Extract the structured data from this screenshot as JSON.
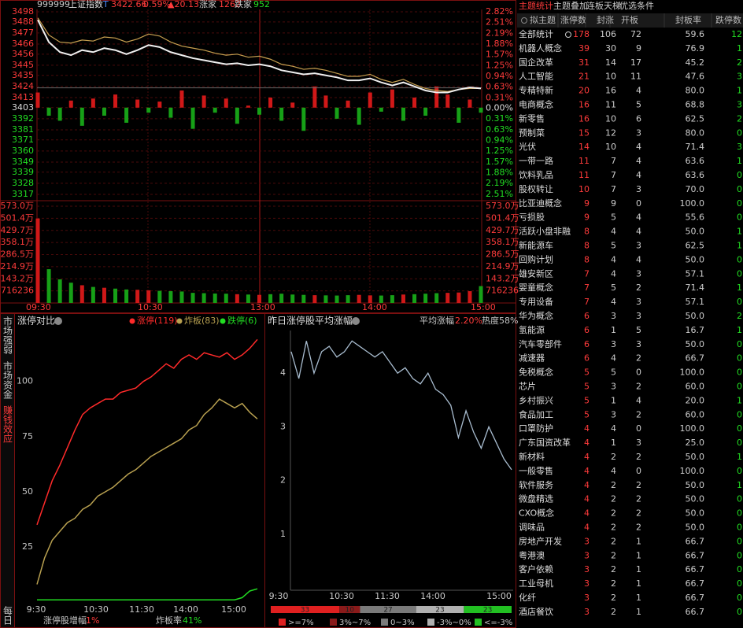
{
  "header": {
    "code": "999999",
    "name": "上证指数",
    "flag": "T",
    "price": "3422.66",
    "pct": "0.59%",
    "change": "▲20.13",
    "up_label": "涨家",
    "up": "1262",
    "down_label": "跌家",
    "down": "952"
  },
  "index_chart": {
    "ylim": [
      3317,
      3498
    ],
    "price_ticks": [
      3498,
      3488,
      3477,
      3466,
      3456,
      3445,
      3435,
      3424,
      3413,
      3403,
      3392,
      3381,
      3371,
      3360,
      3349,
      3339,
      3328,
      3317
    ],
    "pct_ticks": [
      {
        "value": 2.82,
        "label": "2.82%"
      },
      {
        "value": 2.51,
        "label": "2.51%"
      },
      {
        "value": 2.19,
        "label": "2.19%"
      },
      {
        "value": 1.88,
        "label": "1.88%"
      },
      {
        "value": 1.57,
        "label": "1.57%"
      },
      {
        "value": 1.25,
        "label": "1.25%"
      },
      {
        "value": 0.94,
        "label": "0.94%"
      },
      {
        "value": 0.63,
        "label": "0.63%"
      },
      {
        "value": 0.31,
        "label": "0.31%"
      },
      {
        "value": 0,
        "label": "0.00%"
      },
      {
        "value": -0.31,
        "label": "0.31%"
      },
      {
        "value": -0.63,
        "label": "0.63%"
      },
      {
        "value": -0.94,
        "label": "0.94%"
      },
      {
        "value": -1.25,
        "label": "1.25%"
      },
      {
        "value": -1.57,
        "label": "1.57%"
      },
      {
        "value": -1.88,
        "label": "1.88%"
      },
      {
        "value": -2.19,
        "label": "2.19%"
      },
      {
        "value": -2.51,
        "label": "2.51%"
      }
    ],
    "pct_lim": [
      -2.51,
      2.82
    ],
    "volume_ylim": [
      0,
      573
    ],
    "volume_ticks": [
      {
        "value": 573.0,
        "label": "573.0万"
      },
      {
        "value": 501.4,
        "label": "501.4万"
      },
      {
        "value": 429.7,
        "label": "429.7万"
      },
      {
        "value": 358.1,
        "label": "358.1万"
      },
      {
        "value": 286.5,
        "label": "286.5万"
      },
      {
        "value": 214.9,
        "label": "214.9万"
      },
      {
        "value": 143.2,
        "label": "143.2万"
      },
      {
        "value": 71.6236,
        "label": "716236"
      }
    ],
    "time_ticks": [
      "09:30",
      "10:30",
      "13:00",
      "14:00",
      "15:00"
    ],
    "index": [
      3490,
      3468,
      3458,
      3455,
      3460,
      3458,
      3462,
      3460,
      3456,
      3460,
      3465,
      3463,
      3458,
      3455,
      3452,
      3450,
      3448,
      3446,
      3447,
      3445,
      3446,
      3444,
      3440,
      3438,
      3436,
      3437,
      3435,
      3433,
      3430,
      3430,
      3432,
      3428,
      3425,
      3428,
      3424,
      3420,
      3418,
      3418,
      3421,
      3423,
      3422
    ],
    "leader": [
      3492,
      3475,
      3468,
      3467,
      3470,
      3469,
      3473,
      3472,
      3468,
      3471,
      3476,
      3474,
      3468,
      3464,
      3462,
      3460,
      3457,
      3455,
      3456,
      3453,
      3454,
      3451,
      3446,
      3444,
      3441,
      3442,
      3440,
      3437,
      3434,
      3434,
      3436,
      3431,
      3428,
      3431,
      3426,
      3422,
      3420,
      3419,
      3421,
      3422,
      3422
    ],
    "strength": [
      3418,
      3395,
      3390,
      3410,
      3385,
      3412,
      3395,
      3416,
      3388,
      3411,
      3398,
      3409,
      3393,
      3420,
      3382,
      3415,
      3398,
      3412,
      3387,
      3405,
      3396,
      3413,
      3390,
      3408,
      3380,
      3424,
      3415,
      3392,
      3410,
      3386,
      3418,
      3399,
      3421,
      3390,
      3413,
      3395,
      3424,
      3416,
      3388,
      3411,
      3398
    ],
    "volume": [
      500,
      200,
      140,
      120,
      105,
      95,
      90,
      85,
      80,
      78,
      75,
      72,
      70,
      68,
      60,
      58,
      56,
      55,
      52,
      50,
      48,
      52,
      55,
      50,
      48,
      46,
      45,
      44,
      46,
      48,
      45,
      44,
      46,
      50,
      52,
      55,
      58,
      60,
      62,
      70,
      100
    ]
  },
  "limit_panel": {
    "side_tabs": [
      "市场强弱",
      "市场资金",
      "赚钱效应",
      "每日"
    ],
    "title": "涨停对比",
    "ylim": [
      0,
      122
    ],
    "yticks": [
      25,
      50,
      75,
      100
    ],
    "time_ticks": [
      "9:30",
      "10:30",
      "11:30",
      "14:00",
      "15:00"
    ],
    "series": [
      {
        "name": "涨停(119)",
        "color": "#ff2a2a",
        "values": [
          35,
          45,
          55,
          62,
          70,
          78,
          85,
          88,
          90,
          92,
          92,
          95,
          96,
          97,
          100,
          102,
          105,
          108,
          106,
          110,
          112,
          110,
          113,
          112,
          111,
          113,
          110,
          112,
          115,
          119
        ]
      },
      {
        "name": "炸板(83)",
        "color": "#b8a050",
        "values": [
          8,
          20,
          28,
          32,
          36,
          38,
          42,
          44,
          48,
          50,
          52,
          55,
          58,
          60,
          63,
          66,
          68,
          70,
          72,
          74,
          78,
          80,
          85,
          88,
          92,
          90,
          88,
          90,
          86,
          83
        ]
      },
      {
        "name": "跌停(6)",
        "color": "#22dd22",
        "values": [
          1,
          1,
          1,
          1,
          1,
          1,
          1,
          1,
          1,
          1,
          1,
          1,
          1,
          1,
          1,
          1,
          1,
          1,
          1,
          1,
          1,
          1,
          1,
          1,
          1,
          1,
          1,
          2,
          5,
          6
        ]
      }
    ],
    "footer": [
      {
        "label": "涨停股增幅",
        "value": "1%"
      },
      {
        "label": "炸板率",
        "value": "41%"
      }
    ]
  },
  "yesterday_panel": {
    "title": "昨日涨停股平均涨幅",
    "avg_label": "平均涨幅",
    "avg_value": "2.20%",
    "heat": "热度58%",
    "ylim": [
      0,
      4.75
    ],
    "yticks": [
      1,
      2,
      3,
      4
    ],
    "time_ticks": [
      "9:30",
      "10:30",
      "11:30",
      "14:00",
      "15:00"
    ],
    "values": [
      4.4,
      3.9,
      4.6,
      4.0,
      4.4,
      4.5,
      4.3,
      4.4,
      4.6,
      4.5,
      4.4,
      4.3,
      4.4,
      4.2,
      4.0,
      4.1,
      3.9,
      3.8,
      4.0,
      3.7,
      3.6,
      3.4,
      2.8,
      3.3,
      2.9,
      2.6,
      3.0,
      2.7,
      2.4,
      2.2
    ],
    "distribution": [
      {
        "label": ">=7%",
        "value": 33,
        "color": "#e02020"
      },
      {
        "label": "3%~7%",
        "value": 10,
        "color": "#8a1a1a"
      },
      {
        "label": "0~3%",
        "value": 27,
        "color": "#7a7a7a"
      },
      {
        "label": "-3%~0%",
        "value": 23,
        "color": "#b0b0b0"
      },
      {
        "label": "<=-3%",
        "value": 23,
        "color": "#22c022"
      }
    ]
  },
  "table": {
    "tabs": [
      "主题统计",
      "主题叠加",
      "连板天梯",
      "优选条件"
    ],
    "columns": [
      "拟主题",
      "涨停数",
      "封涨",
      "开板",
      "封板率",
      "跌停数"
    ],
    "rows": [
      [
        "全部统计",
        "178",
        "106",
        "72",
        "59.6",
        "12"
      ],
      [
        "机器人概念",
        "39",
        "30",
        "9",
        "76.9",
        "1"
      ],
      [
        "国企改革",
        "31",
        "14",
        "17",
        "45.2",
        "2"
      ],
      [
        "人工智能",
        "21",
        "10",
        "11",
        "47.6",
        "3"
      ],
      [
        "专精特新",
        "20",
        "16",
        "4",
        "80.0",
        "1"
      ],
      [
        "电商概念",
        "16",
        "11",
        "5",
        "68.8",
        "3"
      ],
      [
        "新零售",
        "16",
        "10",
        "6",
        "62.5",
        "2"
      ],
      [
        "预制菜",
        "15",
        "12",
        "3",
        "80.0",
        "0"
      ],
      [
        "光伏",
        "14",
        "10",
        "4",
        "71.4",
        "3"
      ],
      [
        "一带一路",
        "11",
        "7",
        "4",
        "63.6",
        "1"
      ],
      [
        "饮料乳品",
        "11",
        "7",
        "4",
        "63.6",
        "0"
      ],
      [
        "股权转让",
        "10",
        "7",
        "3",
        "70.0",
        "0"
      ],
      [
        "比亚迪概念",
        "9",
        "9",
        "0",
        "100.0",
        "0"
      ],
      [
        "亏损股",
        "9",
        "5",
        "4",
        "55.6",
        "0"
      ],
      [
        "活跃小盘非融",
        "8",
        "4",
        "4",
        "50.0",
        "1"
      ],
      [
        "新能源车",
        "8",
        "5",
        "3",
        "62.5",
        "1"
      ],
      [
        "回购计划",
        "8",
        "4",
        "4",
        "50.0",
        "0"
      ],
      [
        "雄安新区",
        "7",
        "4",
        "3",
        "57.1",
        "0"
      ],
      [
        "婴童概念",
        "7",
        "5",
        "2",
        "71.4",
        "1"
      ],
      [
        "专用设备",
        "7",
        "4",
        "3",
        "57.1",
        "0"
      ],
      [
        "华为概念",
        "6",
        "3",
        "3",
        "50.0",
        "2"
      ],
      [
        "氢能源",
        "6",
        "1",
        "5",
        "16.7",
        "1"
      ],
      [
        "汽车零部件",
        "6",
        "3",
        "3",
        "50.0",
        "0"
      ],
      [
        "减速器",
        "6",
        "4",
        "2",
        "66.7",
        "0"
      ],
      [
        "免税概念",
        "5",
        "5",
        "0",
        "100.0",
        "0"
      ],
      [
        "芯片",
        "5",
        "3",
        "2",
        "60.0",
        "0"
      ],
      [
        "乡村振兴",
        "5",
        "1",
        "4",
        "20.0",
        "1"
      ],
      [
        "食品加工",
        "5",
        "3",
        "2",
        "60.0",
        "0"
      ],
      [
        "口罩防护",
        "4",
        "4",
        "0",
        "100.0",
        "0"
      ],
      [
        "广东国资改革",
        "4",
        "1",
        "3",
        "25.0",
        "0"
      ],
      [
        "新材料",
        "4",
        "2",
        "2",
        "50.0",
        "1"
      ],
      [
        "一般零售",
        "4",
        "4",
        "0",
        "100.0",
        "0"
      ],
      [
        "软件服务",
        "4",
        "2",
        "2",
        "50.0",
        "1"
      ],
      [
        "微盘精选",
        "4",
        "2",
        "2",
        "50.0",
        "0"
      ],
      [
        "CXO概念",
        "4",
        "2",
        "2",
        "50.0",
        "0"
      ],
      [
        "调味品",
        "4",
        "2",
        "2",
        "50.0",
        "0"
      ],
      [
        "房地产开发",
        "3",
        "2",
        "1",
        "66.7",
        "0"
      ],
      [
        "粤港澳",
        "3",
        "2",
        "1",
        "66.7",
        "0"
      ],
      [
        "客户依赖",
        "3",
        "2",
        "1",
        "66.7",
        "0"
      ],
      [
        "工业母机",
        "3",
        "2",
        "1",
        "66.7",
        "0"
      ],
      [
        "化纤",
        "3",
        "2",
        "1",
        "66.7",
        "0"
      ],
      [
        "酒店餐饮",
        "3",
        "2",
        "1",
        "66.7",
        "0"
      ]
    ]
  }
}
